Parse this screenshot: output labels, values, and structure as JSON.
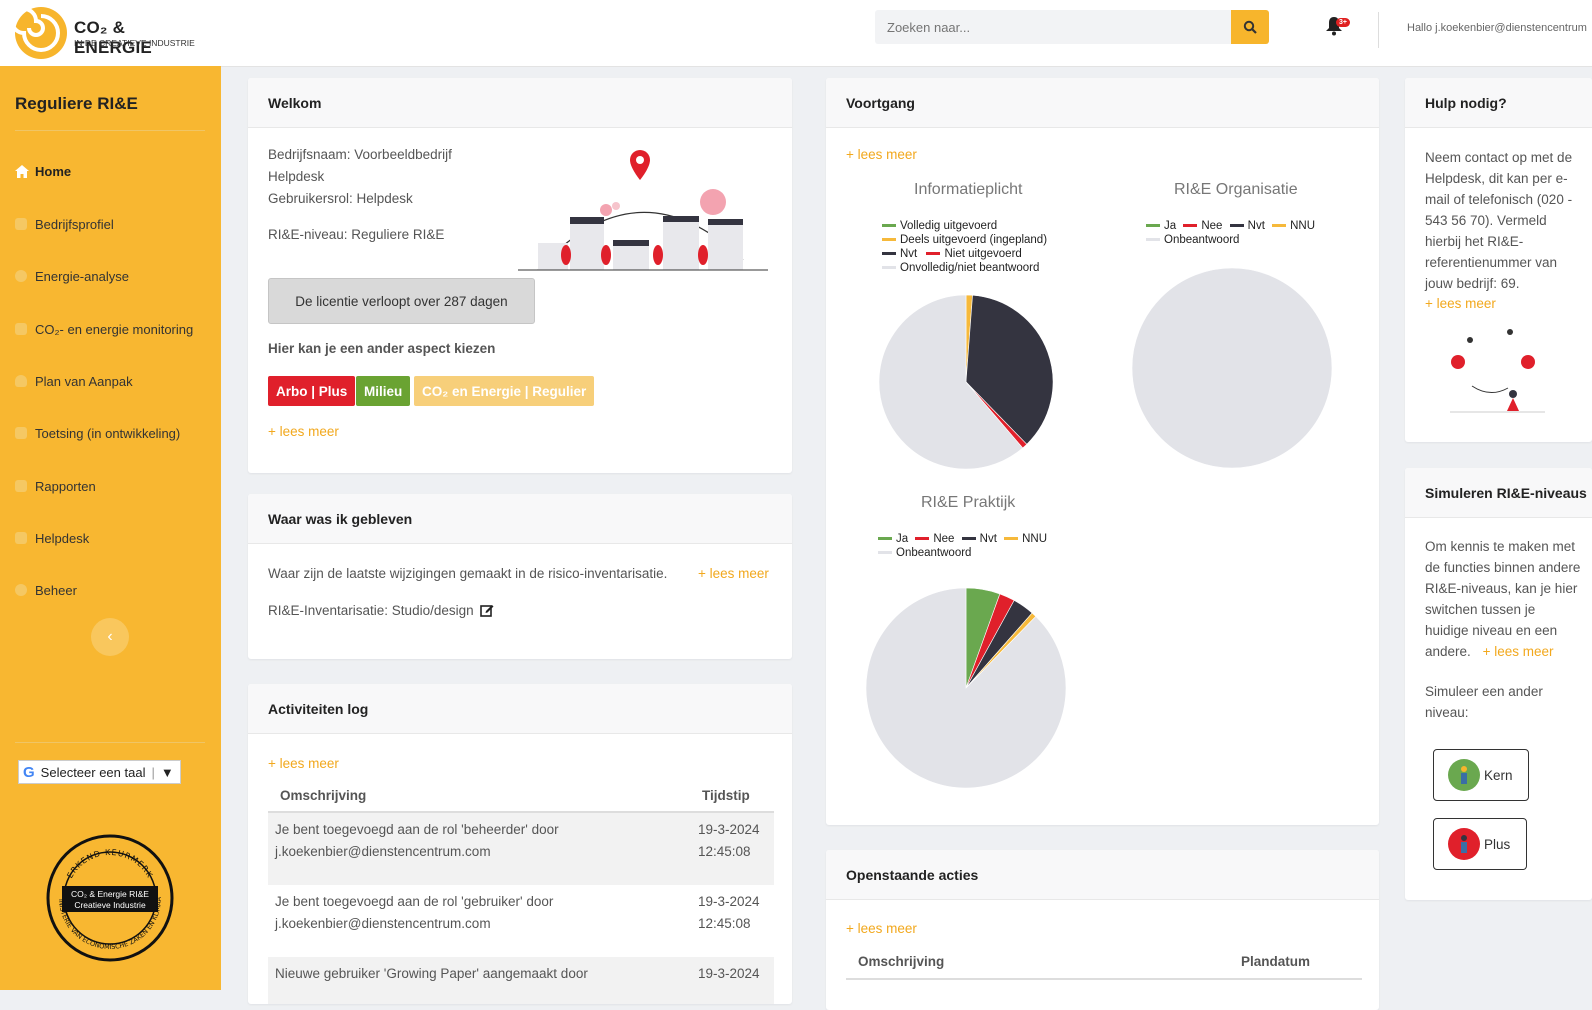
{
  "header": {
    "logo_line1": "CO₂ & ENERGIE",
    "logo_line2": "IN DE CREATIEVE INDUSTRIE",
    "search_placeholder": "Zoeken naar...",
    "notification_badge": "3+",
    "greeting": "Hallo j.koekenbier@dienstencentrum"
  },
  "sidebar": {
    "title": "Reguliere RI&E",
    "items": [
      {
        "label": "Home"
      },
      {
        "label": "Bedrijfsprofiel"
      },
      {
        "label": "Energie-analyse"
      },
      {
        "label": "CO₂- en energie monitoring"
      },
      {
        "label": "Plan van Aanpak"
      },
      {
        "label": "Toetsing (in ontwikkeling)"
      },
      {
        "label": "Rapporten"
      },
      {
        "label": "Helpdesk"
      },
      {
        "label": "Beheer"
      }
    ],
    "language_label": "Selecteer een taal",
    "seal_top": "ERKEND KEURMERK",
    "seal_center1": "CO₂ & Energie RI&E",
    "seal_center2": "Creatieve Industrie",
    "seal_bottom": "MINISTERIE VAN ECONOMISCHE ZAKEN EN KLIMAAT"
  },
  "welkom": {
    "title": "Welkom",
    "company": "Bedrijfsnaam: Voorbeeldbedrijf",
    "department": "Helpdesk",
    "role": "Gebruikersrol: Helpdesk",
    "level": "RI&E-niveau: Reguliere RI&E",
    "license": "De licentie verloopt over 287 dagen",
    "aspect_heading": "Hier kan je een ander aspect kiezen",
    "tags": [
      {
        "label": "Arbo | Plus",
        "color": "#e0202b"
      },
      {
        "label": "Milieu",
        "color": "#6aa332"
      },
      {
        "label": "CO₂ en Energie | Regulier",
        "color": "#f7cf7a"
      }
    ],
    "lees_meer": "+ lees meer"
  },
  "gebleven": {
    "title": "Waar was ik gebleven",
    "text": "Waar zijn de laatste wijzigingen gemaakt in de risico-inventarisatie.",
    "lees_meer": "+ lees meer",
    "inventarisatie": "RI&E-Inventarisatie: Studio/design"
  },
  "log": {
    "title": "Activiteiten log",
    "lees_meer": "+ lees meer",
    "col_desc": "Omschrijving",
    "col_time": "Tijdstip",
    "rows": [
      {
        "desc1": "Je bent toegevoegd aan de rol 'beheerder' door",
        "desc2": "j.koekenbier@dienstencentrum.com",
        "date": "19-3-2024",
        "time": "12:45:08"
      },
      {
        "desc1": "Je bent toegevoegd aan de rol 'gebruiker' door",
        "desc2": "j.koekenbier@dienstencentrum.com",
        "date": "19-3-2024",
        "time": "12:45:08"
      },
      {
        "desc1": "Nieuwe gebruiker 'Growing Paper' aangemaakt door",
        "desc2": "",
        "date": "19-3-2024",
        "time": ""
      }
    ]
  },
  "voortgang": {
    "title": "Voortgang",
    "lees_meer": "+ lees meer"
  },
  "chart_data": [
    {
      "type": "pie",
      "title": "Informatieplicht",
      "categories": [
        "Volledig uitgevoerd",
        "Deels uitgevoerd (ingepland)",
        "Nvt",
        "Niet uitgevoerd",
        "Onvolledig/niet beantwoord"
      ],
      "values": [
        0,
        1.2,
        36.5,
        1.0,
        61.3
      ],
      "colors": [
        "#6aa84f",
        "#f6b93b",
        "#343440",
        "#e0202b",
        "#e2e3e8"
      ]
    },
    {
      "type": "pie",
      "title": "RI&E Organisatie",
      "categories": [
        "Ja",
        "Nee",
        "Nvt",
        "NNU",
        "Onbeantwoord"
      ],
      "values": [
        0,
        0,
        0,
        0,
        100
      ],
      "colors": [
        "#6aa84f",
        "#e0202b",
        "#343440",
        "#f6b93b",
        "#e2e3e8"
      ]
    },
    {
      "type": "pie",
      "title": "RI&E Praktijk",
      "categories": [
        "Ja",
        "Nee",
        "Nvt",
        "NNU",
        "Onbeantwoord"
      ],
      "values": [
        5.5,
        2.5,
        3.5,
        0.8,
        87.7
      ],
      "colors": [
        "#6aa84f",
        "#e0202b",
        "#343440",
        "#f6b93b",
        "#e2e3e8"
      ]
    }
  ],
  "acties": {
    "title": "Openstaande acties",
    "lees_meer": "+ lees meer",
    "col_desc": "Omschrijving",
    "col_date": "Plandatum"
  },
  "hulp": {
    "title": "Hulp nodig?",
    "lines": [
      "Neem contact op met de",
      "Helpdesk, dit kan per e-",
      "mail of telefonisch (020 -",
      "543 56 70). Vermeld",
      "hierbij het RI&E-",
      "referentienummer van",
      "jouw bedrijf: 69."
    ],
    "lees_meer": "+ lees meer"
  },
  "simuleren": {
    "title": "Simuleren RI&E-niveaus",
    "lines": [
      "Om kennis te maken met",
      "de functies binnen andere",
      "RI&E-niveaus, kan je hier",
      "switchen tussen je",
      "huidige niveau en een",
      "andere."
    ],
    "lees_meer": "+ lees meer",
    "sim_text1": "Simuleer een ander",
    "sim_text2": "niveau:",
    "buttons": [
      {
        "label": "Kern"
      },
      {
        "label": "Plus"
      }
    ]
  }
}
